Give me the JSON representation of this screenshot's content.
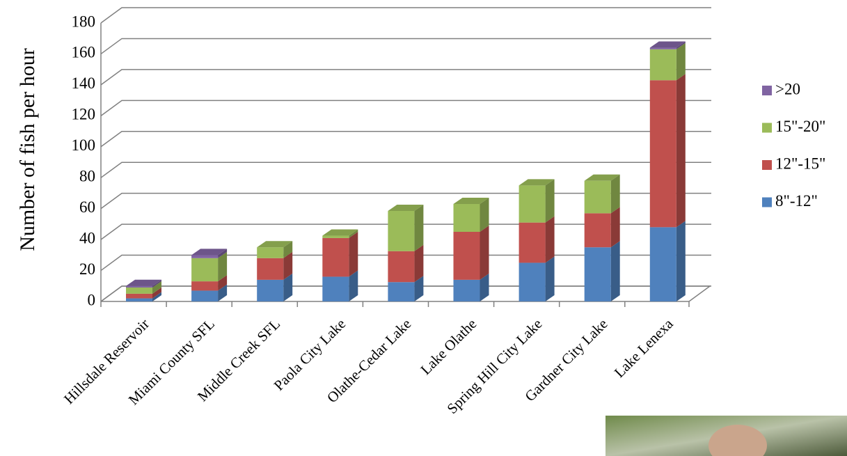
{
  "chart_data": {
    "type": "bar3d_stacked",
    "y_axis_label": "Number of fish per hour",
    "categories": [
      "Hillsdale Reservoir",
      "Miami County SFL",
      "Middle Creek SFL",
      "Paola City Lake",
      "Olathe-Cedar Lake",
      "Lake Olathe",
      "Spring Hill City Lake",
      "Gardner City Lake",
      "Lake Lenexa"
    ],
    "series": [
      {
        "name": "8\"-12\"",
        "color": "#4f81bd",
        "values": [
          2,
          7,
          14,
          16,
          12.5,
          14,
          25,
          35,
          48
        ]
      },
      {
        "name": "12\"-15\"",
        "color": "#c0504d",
        "values": [
          3,
          6,
          14,
          25,
          20,
          31,
          26,
          22,
          95
        ]
      },
      {
        "name": "15\"-20\"",
        "color": "#9bbb59",
        "values": [
          4,
          15,
          7,
          1.5,
          26,
          18,
          24,
          21,
          20
        ]
      },
      {
        "name": ">20",
        "color": "#8064a2",
        "values": [
          1,
          2,
          0,
          0,
          0,
          0,
          0,
          0,
          1
        ]
      }
    ],
    "ylim": [
      0,
      180
    ],
    "yticks": [
      0,
      20,
      40,
      60,
      80,
      100,
      120,
      140,
      160,
      180
    ],
    "grid": true,
    "legend": "right"
  }
}
